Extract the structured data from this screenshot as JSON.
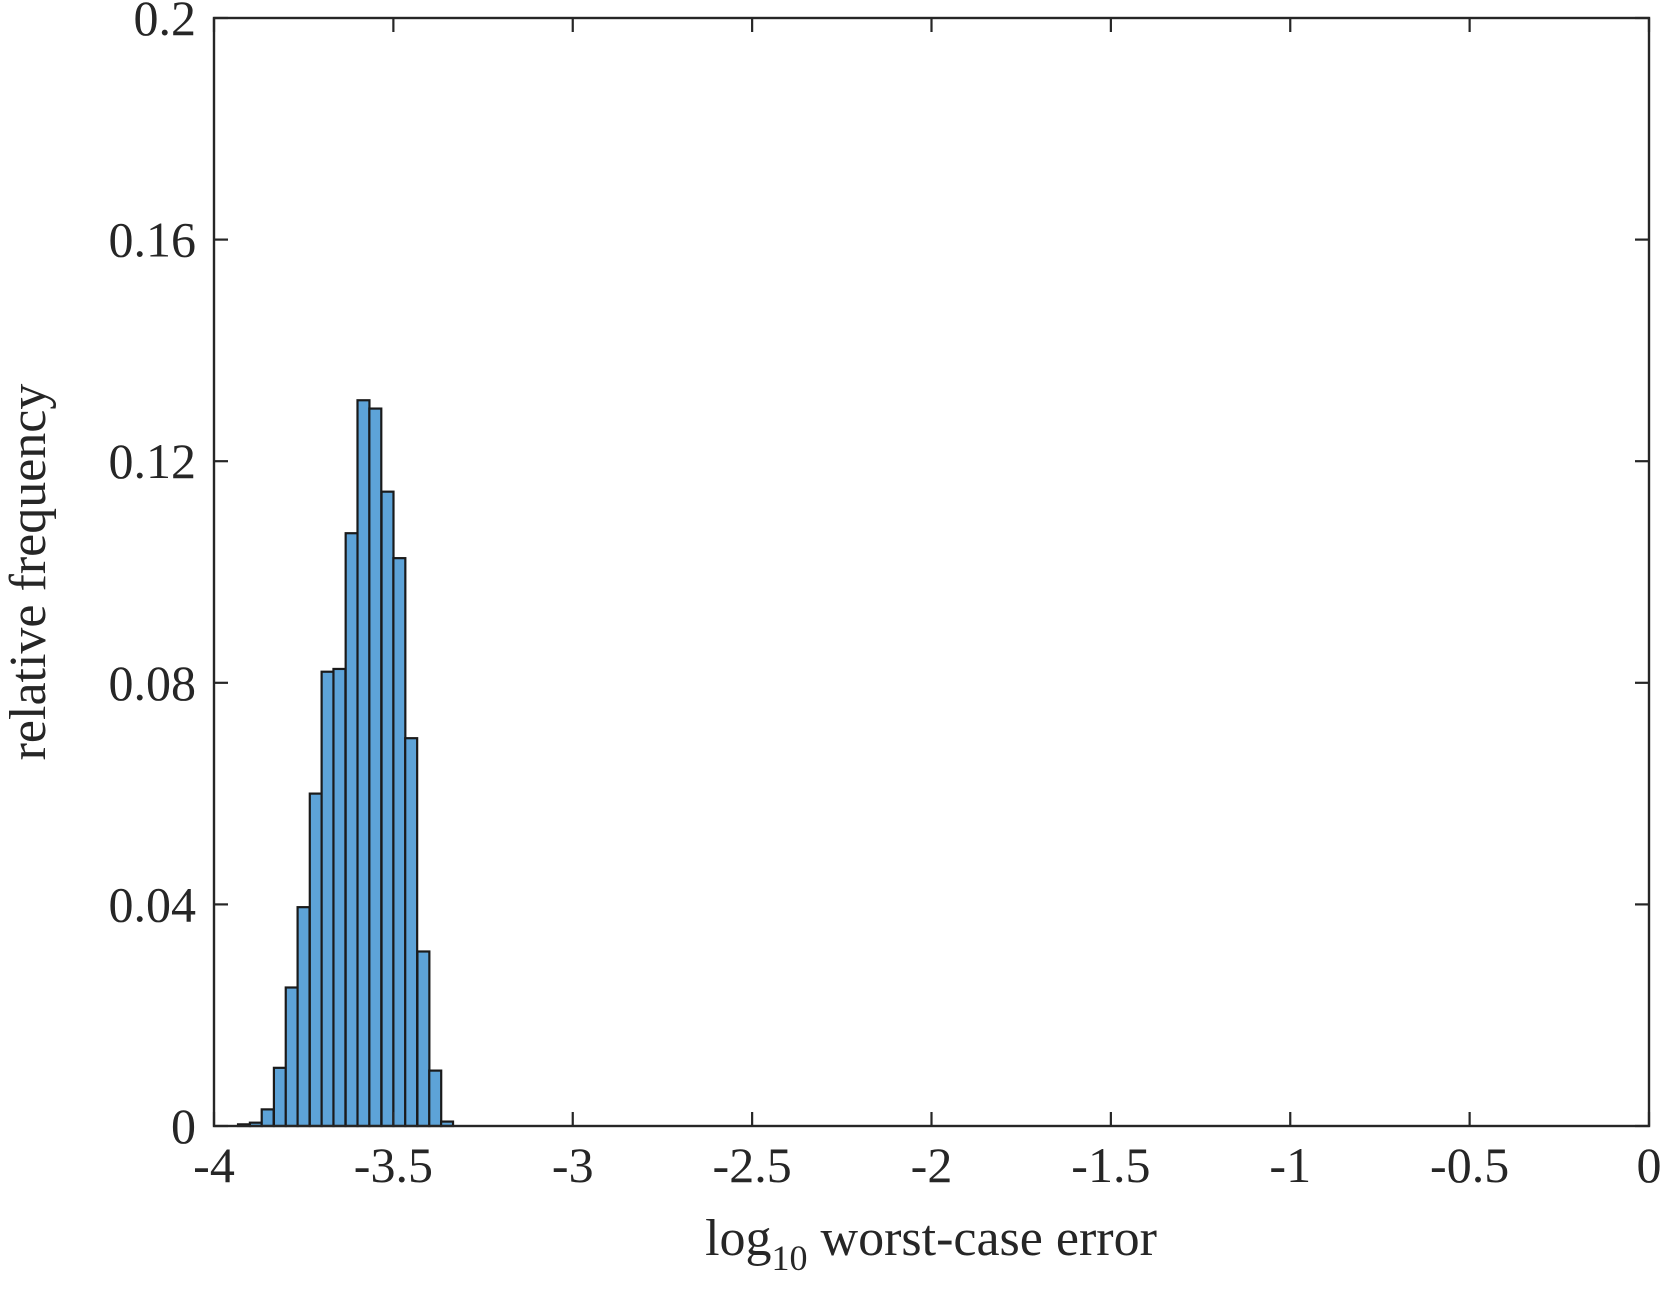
{
  "chart_data": {
    "type": "bar",
    "title": "",
    "xlabel_main": "log",
    "xlabel_sub": "10",
    "xlabel_rest": " worst-case error",
    "ylabel": "relative frequency",
    "xlim": [
      -4,
      0
    ],
    "ylim": [
      0,
      0.2
    ],
    "xticks": [
      "-4",
      "-3.5",
      "-3",
      "-2.5",
      "-2",
      "-1.5",
      "-1",
      "-0.5",
      "0"
    ],
    "xtick_values": [
      -4,
      -3.5,
      -3,
      -2.5,
      -2,
      -1.5,
      -1,
      -0.5,
      0
    ],
    "yticks": [
      "0",
      "0.04",
      "0.08",
      "0.12",
      "0.16",
      "0.2"
    ],
    "ytick_values": [
      0,
      0.04,
      0.08,
      0.12,
      0.16,
      0.2
    ],
    "bin_width": 0.0333,
    "bins": [
      {
        "x0": -3.933,
        "value": 0.0003
      },
      {
        "x0": -3.9,
        "value": 0.0006
      },
      {
        "x0": -3.867,
        "value": 0.003
      },
      {
        "x0": -3.833,
        "value": 0.0105
      },
      {
        "x0": -3.8,
        "value": 0.025
      },
      {
        "x0": -3.767,
        "value": 0.0395
      },
      {
        "x0": -3.733,
        "value": 0.06
      },
      {
        "x0": -3.7,
        "value": 0.082
      },
      {
        "x0": -3.667,
        "value": 0.0825
      },
      {
        "x0": -3.633,
        "value": 0.107
      },
      {
        "x0": -3.6,
        "value": 0.131
      },
      {
        "x0": -3.567,
        "value": 0.1295
      },
      {
        "x0": -3.533,
        "value": 0.1145
      },
      {
        "x0": -3.5,
        "value": 0.1025
      },
      {
        "x0": -3.467,
        "value": 0.07
      },
      {
        "x0": -3.433,
        "value": 0.0315
      },
      {
        "x0": -3.4,
        "value": 0.01
      },
      {
        "x0": -3.367,
        "value": 0.0008
      }
    ],
    "bar_color": "#5da3d8",
    "edge_color": "#1a1a1a",
    "grid": false,
    "legend": "none"
  }
}
